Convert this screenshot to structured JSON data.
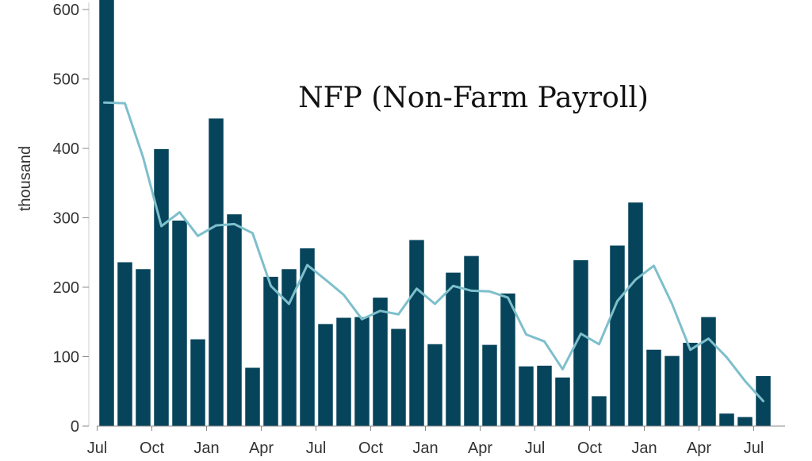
{
  "chart_data": {
    "type": "bar",
    "title": "NFP (Non-Farm Payroll)",
    "ylabel": "thousand",
    "xlabel": "",
    "ylim": [
      0,
      610
    ],
    "yticks": [
      0,
      100,
      200,
      300,
      400,
      500,
      600
    ],
    "x_tick_labels": [
      "Jul",
      "Oct",
      "Jan",
      "Apr",
      "Jul",
      "Oct",
      "Jan",
      "Apr",
      "Jul",
      "Oct",
      "Jan",
      "Apr",
      "Jul"
    ],
    "x_tick_every": 3,
    "bar_color": "#06445b",
    "line_color": "#7ebfcc",
    "series": [
      {
        "type": "bar",
        "values": [
          650,
          236,
          226,
          399,
          296,
          125,
          443,
          305,
          84,
          215,
          226,
          256,
          147,
          156,
          157,
          185,
          140,
          268,
          118,
          221,
          245,
          117,
          191,
          86,
          87,
          70,
          239,
          43,
          260,
          322,
          110,
          101,
          120,
          157,
          18,
          13,
          72
        ]
      },
      {
        "type": "line",
        "values": [
          466,
          465,
          387,
          288,
          308,
          274,
          289,
          291,
          278,
          202,
          176,
          232,
          211,
          189,
          154,
          166,
          161,
          198,
          176,
          202,
          195,
          194,
          185,
          132,
          122,
          82,
          133,
          118,
          180,
          211,
          231,
          176,
          110,
          126,
          99,
          65,
          36
        ]
      }
    ]
  }
}
